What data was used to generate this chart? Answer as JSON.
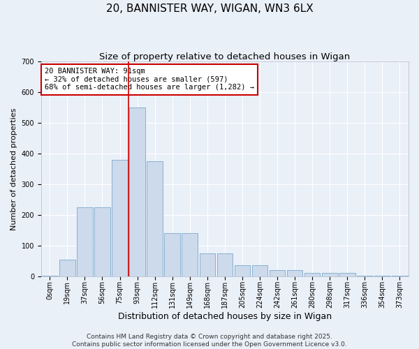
{
  "title1": "20, BANNISTER WAY, WIGAN, WN3 6LX",
  "title2": "Size of property relative to detached houses in Wigan",
  "xlabel": "Distribution of detached houses by size in Wigan",
  "ylabel": "Number of detached properties",
  "bar_labels": [
    "0sqm",
    "19sqm",
    "37sqm",
    "56sqm",
    "75sqm",
    "93sqm",
    "112sqm",
    "131sqm",
    "149sqm",
    "168sqm",
    "187sqm",
    "205sqm",
    "224sqm",
    "242sqm",
    "261sqm",
    "280sqm",
    "298sqm",
    "317sqm",
    "336sqm",
    "354sqm",
    "373sqm"
  ],
  "bar_values": [
    3,
    55,
    225,
    225,
    380,
    550,
    375,
    140,
    140,
    75,
    75,
    35,
    35,
    20,
    20,
    10,
    10,
    10,
    3,
    3,
    3
  ],
  "bar_color": "#cddaeb",
  "bar_edge_color": "#7aa8cc",
  "marker_index": 5,
  "marker_color": "#cc0000",
  "annotation_text": "20 BANNISTER WAY: 91sqm\n← 32% of detached houses are smaller (597)\n68% of semi-detached houses are larger (1,282) →",
  "annotation_box_facecolor": "#ffffff",
  "annotation_box_edgecolor": "#cc0000",
  "ylim": [
    0,
    700
  ],
  "yticks": [
    0,
    100,
    200,
    300,
    400,
    500,
    600,
    700
  ],
  "footer_text": "Contains HM Land Registry data © Crown copyright and database right 2025.\nContains public sector information licensed under the Open Government Licence v3.0.",
  "bg_color": "#eaf0f8",
  "plot_bg_color": "#eaf0f8",
  "grid_color": "#ffffff",
  "title1_fontsize": 11,
  "title2_fontsize": 9.5,
  "xlabel_fontsize": 9,
  "ylabel_fontsize": 8,
  "tick_fontsize": 7,
  "annot_fontsize": 7.5,
  "footer_fontsize": 6.5
}
